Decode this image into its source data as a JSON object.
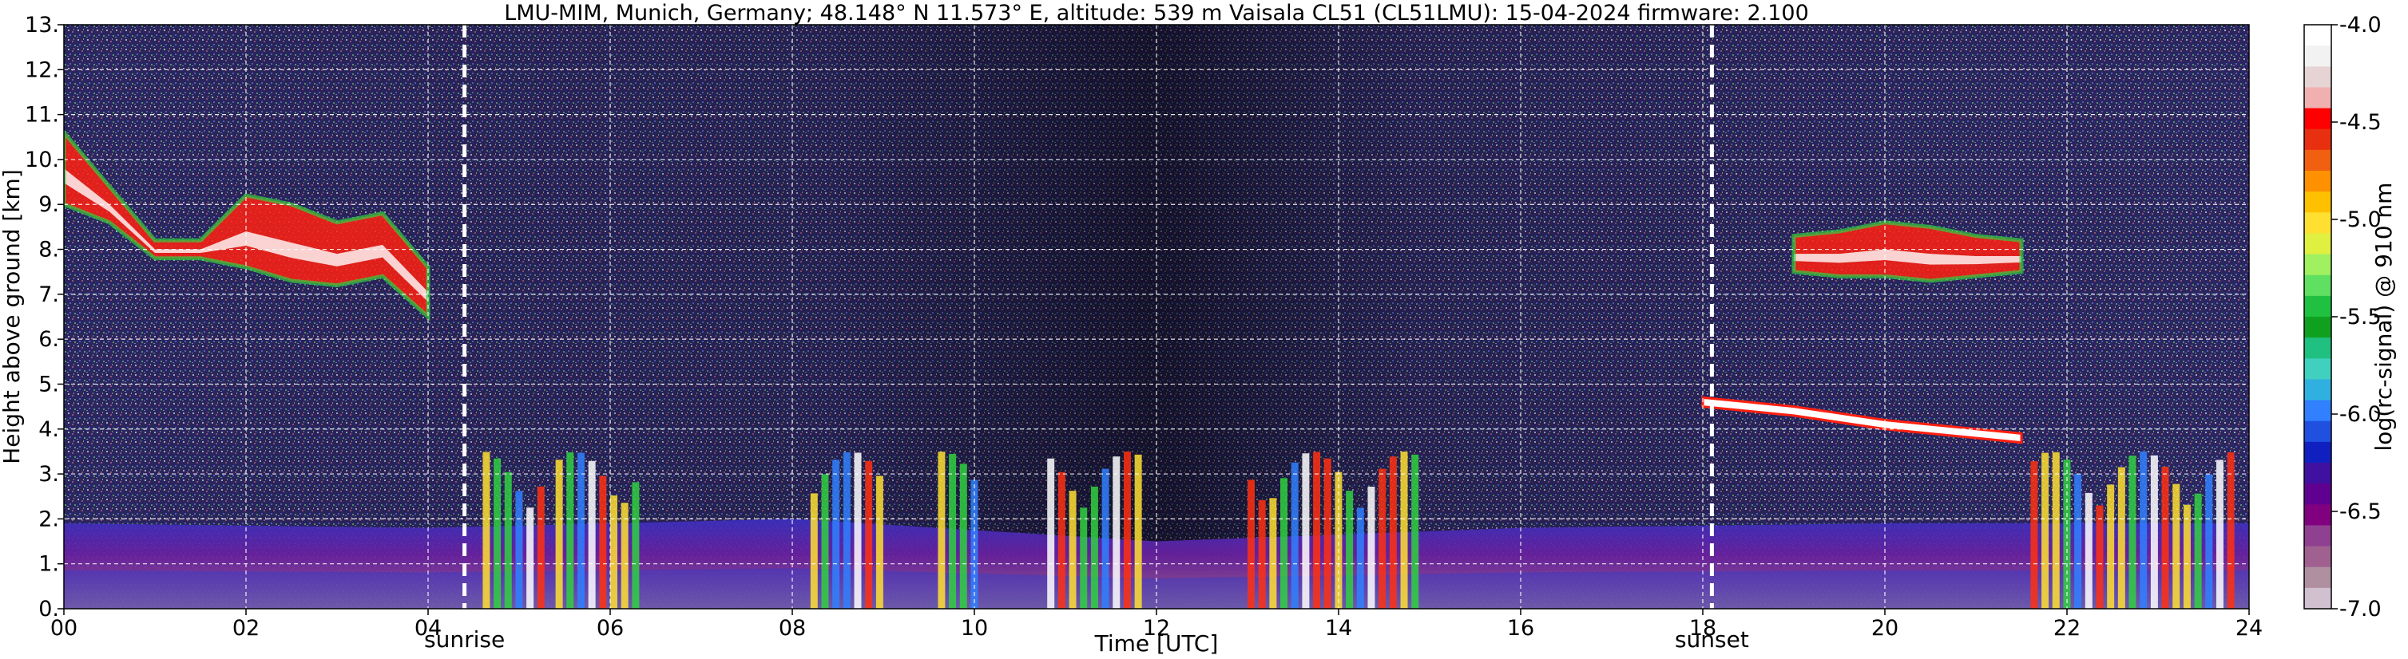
{
  "chart_data": {
    "type": "heatmap",
    "title": "LMU-MIM, Munich, Germany; 48.148° N 11.573° E, altitude: 539 m    Vaisala CL51 (CL51LMU): 15-04-2024    firmware: 2.100",
    "xlabel": "Time [UTC]",
    "ylabel": "Height above ground [km]",
    "xlim": [
      0,
      24
    ],
    "ylim": [
      0,
      13
    ],
    "x_ticks": [
      "00",
      "02",
      "04",
      "06",
      "08",
      "10",
      "12",
      "14",
      "16",
      "18",
      "20",
      "22",
      "24"
    ],
    "y_ticks": [
      "0.",
      "1.",
      "2.",
      "3.",
      "4.",
      "5.",
      "6.",
      "7.",
      "8.",
      "9.",
      "10.",
      "11.",
      "12.",
      "13."
    ],
    "grid": true,
    "colorbar": {
      "label": "log(rc-signal) @ 910 nm",
      "range": [
        -7.0,
        -4.0
      ],
      "ticks": [
        "-4.0",
        "-4.5",
        "-5.0",
        "-5.5",
        "-6.0",
        "-6.5",
        "-7.0"
      ],
      "colors": [
        "#ffffff",
        "#f2f2f2",
        "#e6d4d4",
        "#f0b0b0",
        "#ff0000",
        "#e83010",
        "#f06010",
        "#ff9000",
        "#ffc000",
        "#ffe030",
        "#e0f040",
        "#a0f060",
        "#60e060",
        "#20c040",
        "#10a020",
        "#20c080",
        "#40d0c0",
        "#30b0e0",
        "#3080ff",
        "#2050e0",
        "#1020c0",
        "#4010a0",
        "#600090",
        "#800080",
        "#904090",
        "#a06090",
        "#b090a0",
        "#d0c0d0"
      ]
    },
    "vlines": [
      {
        "x": 4.4,
        "label": "sunrise"
      },
      {
        "x": 18.1,
        "label": "sunset"
      }
    ],
    "layers": [
      {
        "name": "cirrus",
        "time": [
          0.0,
          0.5,
          1.0,
          1.5,
          2.0,
          2.5,
          3.0,
          3.5,
          4.0
        ],
        "bottom_km": [
          9.0,
          8.6,
          7.8,
          7.8,
          7.6,
          7.3,
          7.2,
          7.4,
          6.5
        ],
        "top_km": [
          10.6,
          9.4,
          8.2,
          8.2,
          9.2,
          9.0,
          8.6,
          8.8,
          7.6
        ]
      },
      {
        "name": "cirrus",
        "time": [
          19.0,
          19.5,
          20.0,
          20.5,
          21.0,
          21.5
        ],
        "bottom_km": [
          7.5,
          7.4,
          7.4,
          7.3,
          7.4,
          7.5
        ],
        "top_km": [
          8.3,
          8.4,
          8.6,
          8.5,
          8.3,
          8.2
        ]
      },
      {
        "name": "cloud-layer",
        "time": [
          18.0,
          19.0,
          20.0,
          21.0,
          21.5
        ],
        "bottom_km": [
          4.5,
          4.3,
          4.0,
          3.8,
          3.7
        ],
        "top_km": [
          4.7,
          4.5,
          4.2,
          4.0,
          3.9
        ]
      },
      {
        "name": "boundary-layer",
        "time": [
          0,
          4,
          8,
          12,
          16,
          20,
          24
        ],
        "top_km": [
          1.9,
          1.8,
          2.0,
          1.5,
          1.8,
          1.9,
          1.9
        ]
      }
    ]
  }
}
